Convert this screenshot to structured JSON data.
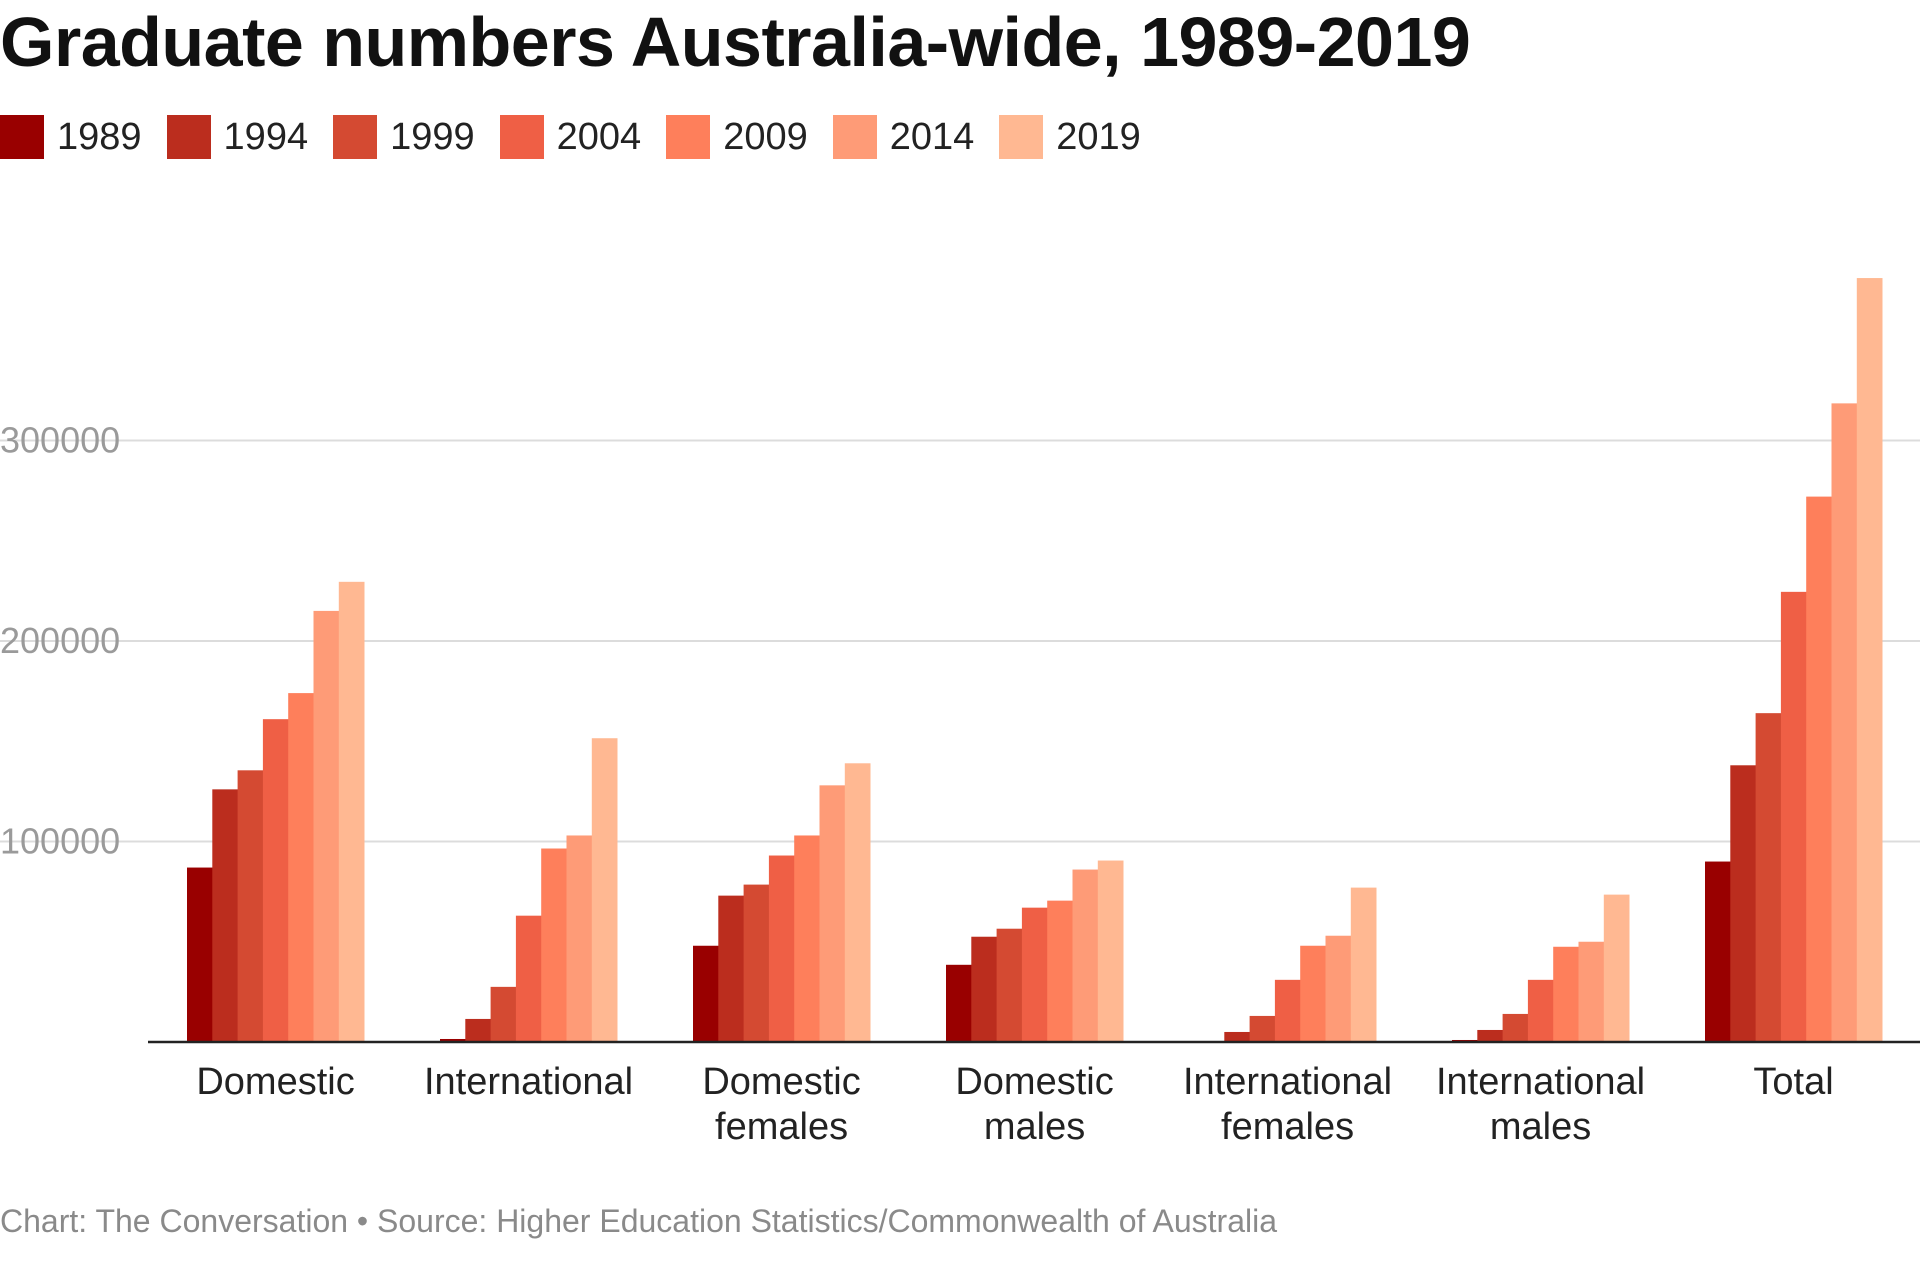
{
  "chart_data": {
    "type": "bar",
    "title": "Graduate numbers Australia-wide, 1989-2019",
    "xlabel": "",
    "ylabel": "",
    "ylim": [
      0,
      390000
    ],
    "yticks": [
      100000,
      200000,
      300000
    ],
    "ytick_labels": [
      "100000",
      "200000",
      "300000"
    ],
    "grid": true,
    "legend_position": "top-left",
    "categories": [
      [
        "Domestic"
      ],
      [
        "International"
      ],
      [
        "Domestic",
        "females"
      ],
      [
        "Domestic",
        "males"
      ],
      [
        "International",
        "females"
      ],
      [
        "International",
        "males"
      ],
      [
        "Total"
      ]
    ],
    "series": [
      {
        "name": "1989",
        "color": "#990000",
        "values": [
          87000,
          1500,
          48000,
          38500,
          0,
          1000,
          90000
        ]
      },
      {
        "name": "1994",
        "color": "#bb2d1e",
        "values": [
          126000,
          11500,
          73000,
          52500,
          5000,
          6000,
          138000
        ]
      },
      {
        "name": "1999",
        "color": "#d44a32",
        "values": [
          135500,
          27500,
          78500,
          56500,
          13000,
          14000,
          164000
        ]
      },
      {
        "name": "2004",
        "color": "#ef5f45",
        "values": [
          161000,
          63000,
          93000,
          67000,
          31000,
          31000,
          224500
        ]
      },
      {
        "name": "2009",
        "color": "#fe7f5b",
        "values": [
          174000,
          96500,
          103000,
          70500,
          48000,
          47500,
          272000
        ]
      },
      {
        "name": "2014",
        "color": "#fe9b77",
        "values": [
          215000,
          103000,
          128000,
          86000,
          53000,
          50000,
          318500
        ]
      },
      {
        "name": "2019",
        "color": "#ffb892",
        "values": [
          229500,
          151500,
          139000,
          90500,
          77000,
          73500,
          381000
        ]
      }
    ],
    "source": "Chart: The Conversation • Source: Higher Education Statistics/Commonwealth of Australia"
  }
}
